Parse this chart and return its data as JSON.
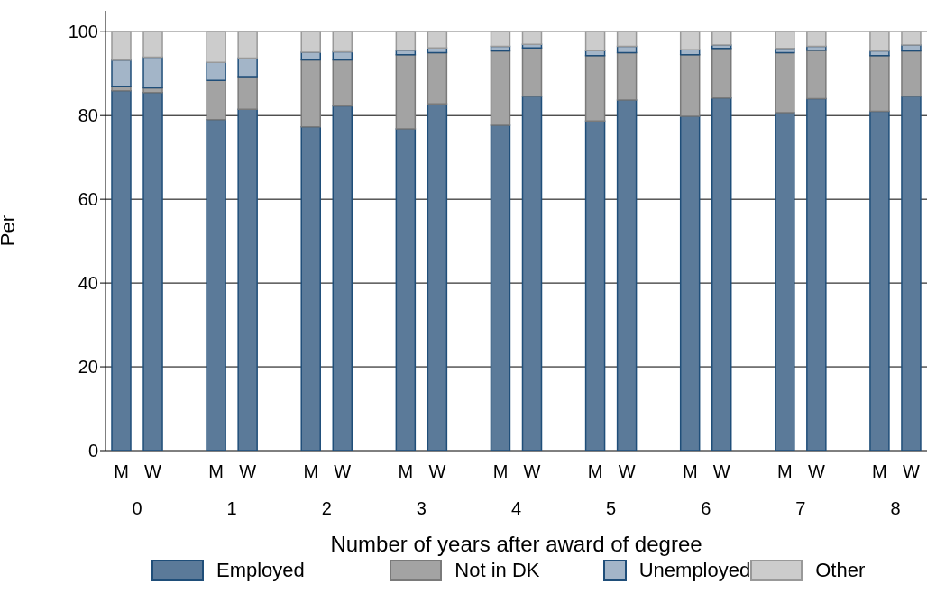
{
  "chart_data": {
    "type": "bar",
    "stacked": true,
    "xlabel": "Number of years after award of degree",
    "ylabel": "Per",
    "categories": [
      "M",
      "W",
      null,
      "M",
      "W",
      null,
      "M",
      "W",
      null,
      "M",
      "W",
      null,
      "M",
      "W",
      null,
      "M",
      "W",
      null,
      "M",
      "W",
      null,
      "M",
      "W",
      null,
      "M",
      "W"
    ],
    "annotations": [
      "0",
      "1",
      "2",
      "3",
      "4",
      "5",
      "6",
      "7",
      "8"
    ],
    "series": [
      {
        "name": "Employed",
        "color": "#5b7a99",
        "values": [
          85.9,
          85.5,
          null,
          79.0,
          81.5,
          null,
          77.3,
          82.3,
          null,
          76.8,
          82.8,
          null,
          77.7,
          84.6,
          null,
          78.7,
          83.7,
          null,
          79.8,
          84.2,
          null,
          80.7,
          84.0,
          null,
          81.0,
          84.6
        ]
      },
      {
        "name": "Not in DK",
        "color": "#a3a3a3",
        "values": [
          1.1,
          1.1,
          null,
          9.4,
          7.8,
          null,
          16.0,
          11.0,
          null,
          17.7,
          12.2,
          null,
          17.7,
          11.5,
          null,
          15.6,
          11.3,
          null,
          14.7,
          11.8,
          null,
          14.3,
          11.6,
          null,
          13.3,
          10.8
        ]
      },
      {
        "name": "Unemployed",
        "color": "#a3b5c8",
        "values": [
          6.2,
          7.3,
          null,
          4.3,
          4.4,
          null,
          1.8,
          1.9,
          null,
          1.1,
          1.1,
          null,
          1.1,
          0.9,
          null,
          1.2,
          1.5,
          null,
          1.2,
          0.8,
          null,
          1.0,
          0.9,
          null,
          1.1,
          1.4
        ]
      },
      {
        "name": "Other",
        "color": "#cccccc",
        "values": [
          6.8,
          6.1,
          null,
          7.3,
          6.3,
          null,
          4.9,
          4.8,
          null,
          4.4,
          3.9,
          null,
          3.5,
          3.0,
          null,
          4.5,
          3.5,
          null,
          4.3,
          3.2,
          null,
          4.0,
          3.5,
          null,
          4.6,
          3.2
        ]
      }
    ],
    "ylim": [
      0,
      105
    ],
    "yticks": [
      0,
      20,
      40,
      60,
      80,
      100
    ],
    "grid": "y",
    "legend": "bottom"
  }
}
